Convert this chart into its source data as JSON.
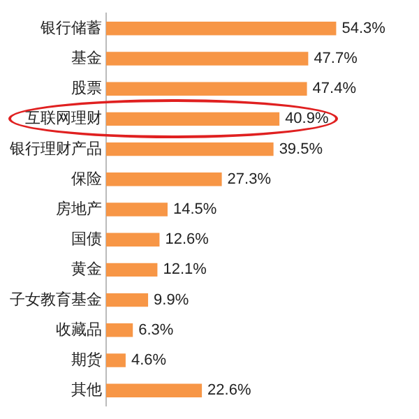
{
  "chart_data": {
    "type": "bar",
    "orientation": "horizontal",
    "categories": [
      "银行储蓄",
      "基金",
      "股票",
      "互联网理财",
      "银行理财产品",
      "保险",
      "房地产",
      "国债",
      "黄金",
      "子女教育基金",
      "收藏品",
      "期货",
      "其他"
    ],
    "values": [
      54.3,
      47.7,
      47.4,
      40.9,
      39.5,
      27.3,
      14.5,
      12.6,
      12.1,
      9.9,
      6.3,
      4.6,
      22.6
    ],
    "value_labels": [
      "54.3%",
      "47.7%",
      "47.4%",
      "40.9%",
      "39.5%",
      "27.3%",
      "14.5%",
      "12.6%",
      "12.1%",
      "9.9%",
      "6.3%",
      "4.6%",
      "22.6%"
    ],
    "color": "#f79646",
    "tick_labels": "y"
  }
}
